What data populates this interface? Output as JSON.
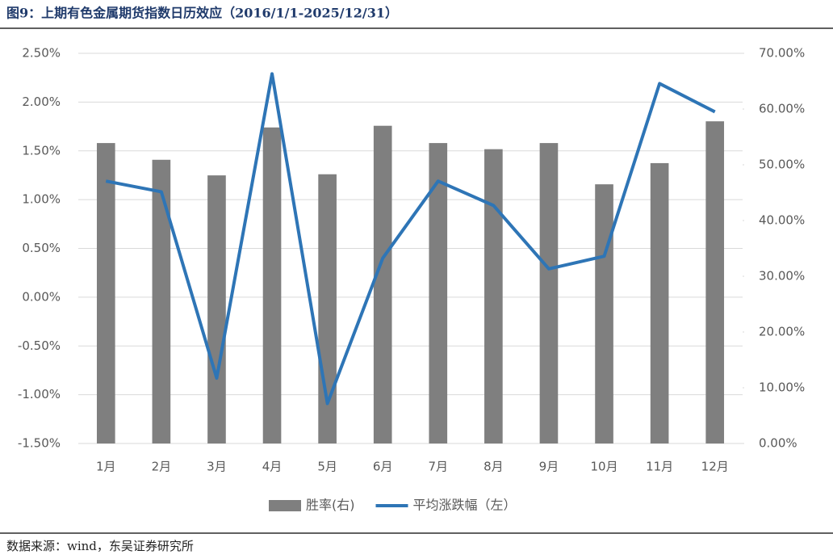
{
  "chart_data": {
    "type": "combo",
    "title": "图9：上期有色金属期货指数日历效应（2016/1/1-2025/12/31）",
    "source": "数据来源：wind，东吴证券研究所",
    "categories": [
      "1月",
      "2月",
      "3月",
      "4月",
      "5月",
      "6月",
      "7月",
      "8月",
      "9月",
      "10月",
      "11月",
      "12月"
    ],
    "series": [
      {
        "name": "胜率(右)",
        "type": "bar",
        "axis": "y2",
        "color": "#7f7f7f",
        "values": [
          53.9,
          50.9,
          48.1,
          56.7,
          48.3,
          57.0,
          53.9,
          52.8,
          53.9,
          46.5,
          50.3,
          57.8
        ]
      },
      {
        "name": "平均涨跌幅（左）",
        "type": "line",
        "axis": "y",
        "color": "#2e75b6",
        "values": [
          1.19,
          1.08,
          -0.83,
          2.29,
          -1.09,
          0.4,
          1.19,
          0.94,
          0.29,
          0.42,
          2.19,
          1.9
        ]
      }
    ],
    "ylim": [
      -1.5,
      2.5
    ],
    "yticks": [
      {
        "value": -1.5,
        "label": "-1.50%"
      },
      {
        "value": -1.0,
        "label": "-1.00%"
      },
      {
        "value": -0.5,
        "label": "-0.50%"
      },
      {
        "value": 0,
        "label": "0.00%"
      },
      {
        "value": 0.5,
        "label": "0.50%"
      },
      {
        "value": 1.0,
        "label": "1.00%"
      },
      {
        "value": 1.5,
        "label": "1.50%"
      },
      {
        "value": 2.0,
        "label": "2.00%"
      },
      {
        "value": 2.5,
        "label": "2.50%"
      }
    ],
    "y2lim": [
      0,
      70
    ],
    "y2ticks": [
      {
        "value": 0,
        "label": "0.00%"
      },
      {
        "value": 10,
        "label": "10.00%"
      },
      {
        "value": 20,
        "label": "20.00%"
      },
      {
        "value": 30,
        "label": "30.00%"
      },
      {
        "value": 40,
        "label": "40.00%"
      },
      {
        "value": 50,
        "label": "50.00%"
      },
      {
        "value": 60,
        "label": "60.00%"
      },
      {
        "value": 70,
        "label": "70.00%"
      }
    ],
    "grid": true
  }
}
